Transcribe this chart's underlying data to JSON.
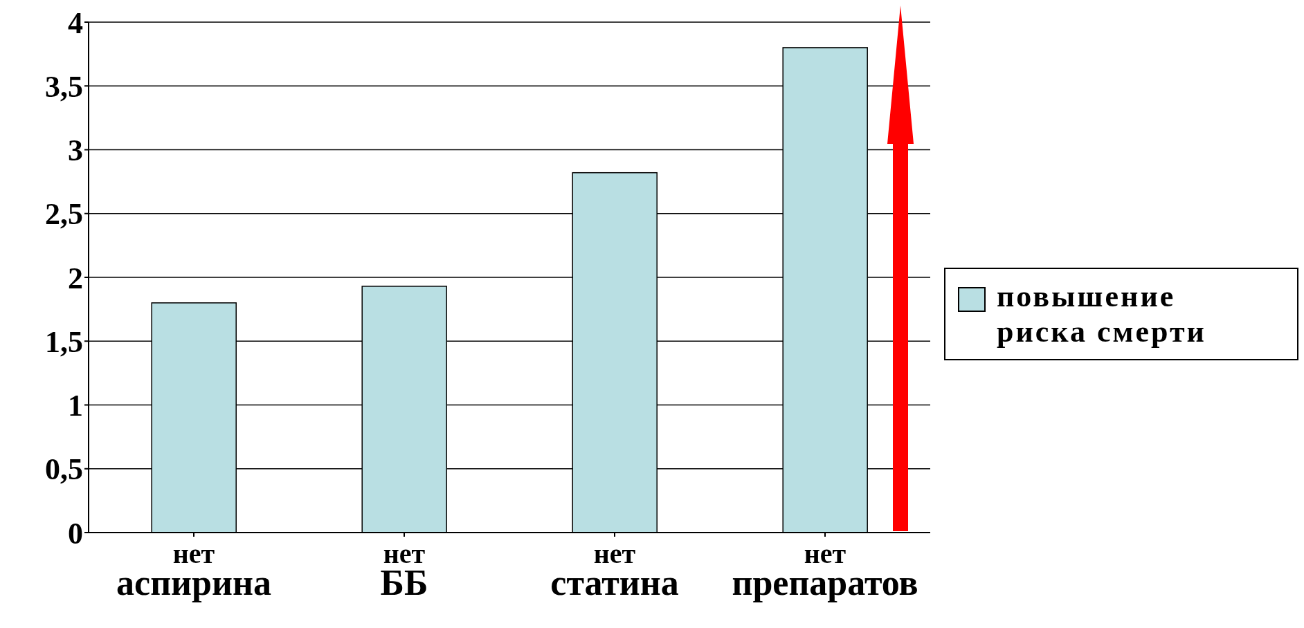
{
  "chart_data": {
    "type": "bar",
    "categories": [
      "нет аспирина",
      "нет ББ",
      "нет статина",
      "нет препаратов"
    ],
    "series": [
      {
        "name": "повышение риска смерти",
        "color": "#b9dfe3",
        "values": [
          1.8,
          1.93,
          2.82,
          3.8
        ]
      }
    ],
    "ylim": [
      0,
      4
    ],
    "yticks": [
      0,
      {
        "value": 0.5,
        "label": "0,5"
      },
      1,
      {
        "value": 1.5,
        "label": "1,5"
      },
      2,
      {
        "value": 2.5,
        "label": "2,5"
      },
      3,
      {
        "value": 3.5,
        "label": "3,5"
      },
      4
    ],
    "grid": "y",
    "legend": "right"
  }
}
